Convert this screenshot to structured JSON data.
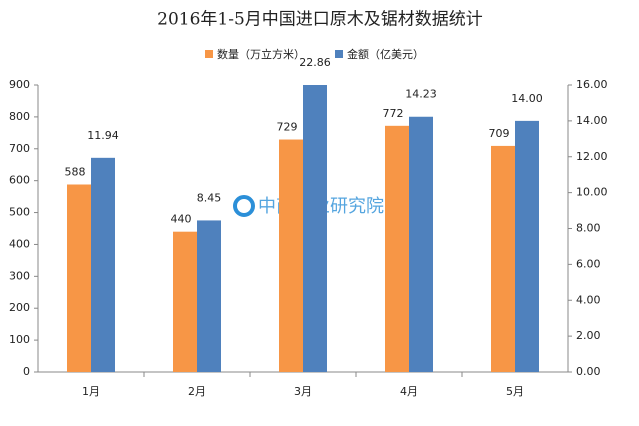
{
  "chart_data": {
    "type": "bar",
    "title": "2016年1-5月中国进口原木及锯材数据统计",
    "watermark": "中商产业研究院",
    "categories": [
      "1月",
      "2月",
      "3月",
      "4月",
      "5月"
    ],
    "series": [
      {
        "name": "数量（万立方米）",
        "color": "#f79646",
        "values": [
          588,
          440,
          729,
          772,
          709
        ]
      },
      {
        "name": "金额（亿美元）",
        "color": "#4f81bd",
        "axis": "y2",
        "values": [
          11.94,
          8.45,
          22.86,
          14.23,
          14.0
        ],
        "value_labels": [
          "11.94",
          "8.45",
          "22.86",
          "14.23",
          "14.00"
        ]
      }
    ],
    "ylim": [
      0,
      900
    ],
    "yticks": [
      0,
      100,
      200,
      300,
      400,
      500,
      600,
      700,
      800,
      900
    ],
    "y2lim": [
      0,
      16
    ],
    "y2ticks": [
      {
        "value": 0,
        "label": "0.00"
      },
      {
        "value": 2,
        "label": "2.00"
      },
      {
        "value": 4,
        "label": "4.00"
      },
      {
        "value": 6,
        "label": "6.00"
      },
      {
        "value": 8,
        "label": "8.00"
      },
      {
        "value": 10,
        "label": "10.00"
      },
      {
        "value": 12,
        "label": "12.00"
      },
      {
        "value": 14,
        "label": "14.00"
      },
      {
        "value": 16,
        "label": "16.00"
      }
    ],
    "grid": false,
    "legend": "top"
  }
}
